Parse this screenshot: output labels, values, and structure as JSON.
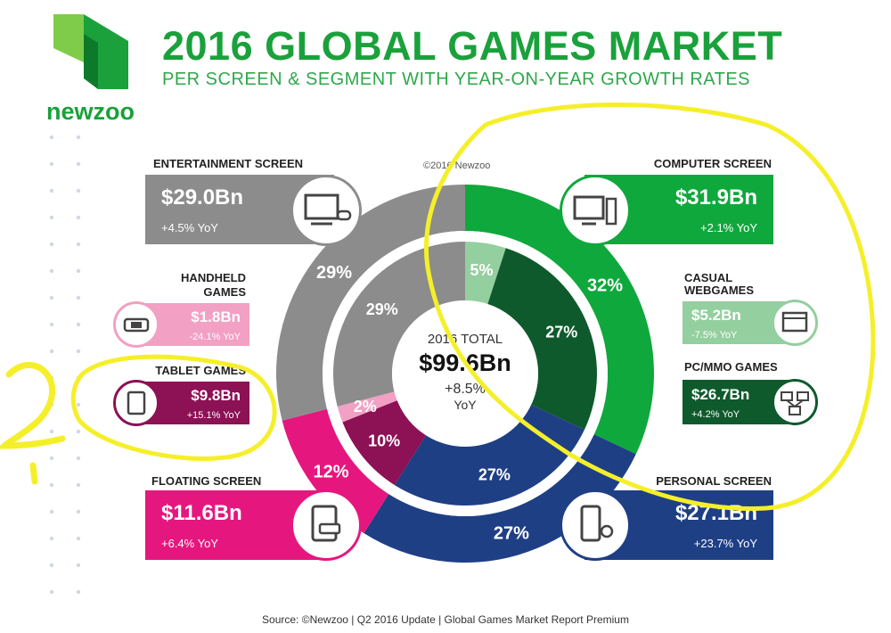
{
  "header": {
    "title": "2016 GLOBAL GAMES MARKET",
    "subtitle": "PER SCREEN & SEGMENT WITH YEAR-ON-YEAR GROWTH RATES",
    "brand": "newzoo",
    "copyright": "©2016 Newzoo"
  },
  "panels": {
    "entertainment": {
      "label": "ENTERTAINMENT SCREEN",
      "value": "$29.0Bn",
      "yoy": "+4.5% YoY",
      "icon": "tv-console-icon"
    },
    "computer": {
      "label": "COMPUTER SCREEN",
      "value": "$31.9Bn",
      "yoy": "+2.1% YoY",
      "icon": "desktop-pc-icon"
    },
    "handheld": {
      "label_line1": "HANDHELD",
      "label_line2": "GAMES",
      "value": "$1.8Bn",
      "yoy": "-24.1% YoY",
      "icon": "handheld-console-icon"
    },
    "tablet": {
      "label": "TABLET GAMES",
      "value": "$9.8Bn",
      "yoy": "+15.1% YoY",
      "icon": "tablet-icon"
    },
    "casual": {
      "label_line1": "CASUAL",
      "label_line2": "WEBGAMES",
      "value": "$5.2Bn",
      "yoy": "-7.5% YoY",
      "icon": "browser-window-icon"
    },
    "pcmmo": {
      "label": "PC/MMO GAMES",
      "value": "$26.7Bn",
      "yoy": "+4.2% YoY",
      "icon": "network-computers-icon"
    },
    "floating": {
      "label": "FLOATING SCREEN",
      "value": "$11.6Bn",
      "yoy": "+6.4% YoY",
      "icon": "tablet-handheld-icon"
    },
    "personal": {
      "label": "PERSONAL SCREEN",
      "value": "$27.1Bn",
      "yoy": "+23.7% YoY",
      "icon": "smartphone-watch-icon"
    }
  },
  "center": {
    "label": "2016 TOTAL",
    "value": "$99.6Bn",
    "growth": "+8.5%",
    "growth_unit": "YoY"
  },
  "source": "Source: ©Newzoo | Q2 2016 Update | Global Games Market Report Premium",
  "colors": {
    "brand_green": "#1aa13b",
    "entertainment": "#8c8c8c",
    "computer": "#0fa83c",
    "casual": "#94cf9f",
    "pcmmo": "#0f5a2c",
    "personal": "#1f3f85",
    "floating": "#e5177f",
    "tablet": "#8c1155",
    "handheld": "#f2a0c4"
  },
  "chart_data": [
    {
      "type": "pie",
      "name": "screens",
      "categories": [
        "COMPUTER SCREEN",
        "PERSONAL SCREEN",
        "FLOATING SCREEN",
        "ENTERTAINMENT SCREEN"
      ],
      "values": [
        32,
        27,
        12,
        29
      ],
      "value_labels": [
        "32%",
        "27%",
        "12%",
        "29%"
      ],
      "unit": "%"
    },
    {
      "type": "pie",
      "name": "segments",
      "categories": [
        "CASUAL WEBGAMES",
        "PC/MMO GAMES",
        "PERSONAL SCREEN",
        "TABLET GAMES",
        "HANDHELD GAMES",
        "ENTERTAINMENT SCREEN"
      ],
      "values": [
        5,
        27,
        27,
        10,
        2,
        29
      ],
      "value_labels": [
        "5%",
        "27%",
        "27%",
        "10%",
        "2%",
        "29%"
      ],
      "unit": "%"
    }
  ]
}
